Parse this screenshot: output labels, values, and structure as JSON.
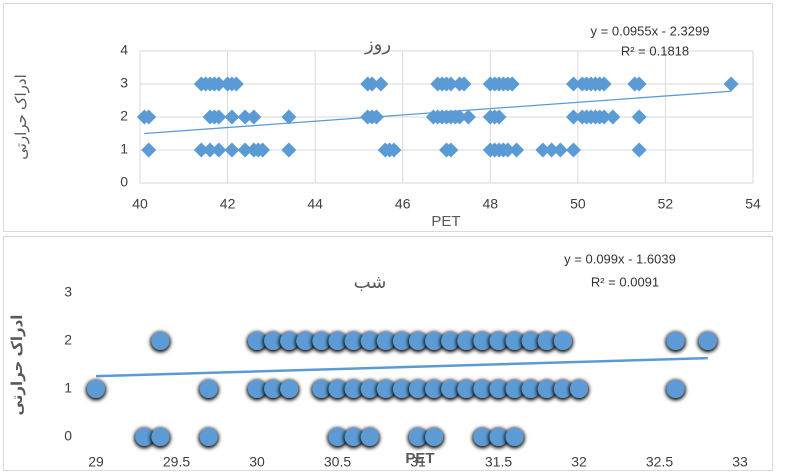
{
  "chart_data": [
    {
      "type": "scatter",
      "title": "روز",
      "x_label": "PET",
      "y_label": "ادراک حرارتی",
      "color": "#5b9bd5",
      "marker": "diamond",
      "grid": true,
      "xlim": [
        40,
        54
      ],
      "xticks": [
        40,
        42,
        44,
        46,
        48,
        50,
        52,
        54
      ],
      "ylim": [
        0,
        4
      ],
      "yticks": [
        0,
        1,
        2,
        3,
        4
      ],
      "x": [
        41.4,
        41.5,
        41.6,
        41.7,
        41.8,
        42.0,
        42.1,
        42.2,
        45.2,
        45.3,
        45.5,
        46.8,
        46.9,
        47.0,
        47.1,
        47.3,
        47.4,
        48.0,
        48.1,
        48.2,
        48.3,
        48.4,
        48.5,
        49.9,
        50.1,
        50.2,
        50.3,
        50.4,
        50.5,
        50.6,
        51.3,
        51.4,
        53.5,
        40.1,
        40.2,
        41.6,
        41.7,
        41.8,
        42.1,
        42.4,
        42.6,
        43.4,
        45.2,
        45.3,
        45.4,
        46.7,
        46.8,
        46.9,
        47.0,
        47.1,
        47.2,
        47.3,
        47.5,
        48.0,
        48.1,
        48.2,
        49.9,
        50.1,
        50.2,
        50.3,
        50.4,
        50.5,
        50.6,
        50.8,
        51.4,
        40.2,
        41.4,
        41.6,
        41.8,
        42.1,
        42.4,
        42.6,
        42.7,
        42.8,
        43.4,
        45.6,
        45.7,
        45.8,
        47.0,
        47.1,
        48.0,
        48.1,
        48.2,
        48.3,
        48.4,
        48.6,
        49.2,
        49.4,
        49.6,
        49.9,
        51.4
      ],
      "values": [
        3,
        3,
        3,
        3,
        3,
        3,
        3,
        3,
        3,
        3,
        3,
        3,
        3,
        3,
        3,
        3,
        3,
        3,
        3,
        3,
        3,
        3,
        3,
        3,
        3,
        3,
        3,
        3,
        3,
        3,
        3,
        3,
        3,
        2,
        2,
        2,
        2,
        2,
        2,
        2,
        2,
        2,
        2,
        2,
        2,
        2,
        2,
        2,
        2,
        2,
        2,
        2,
        2,
        2,
        2,
        2,
        2,
        2,
        2,
        2,
        2,
        2,
        2,
        2,
        2,
        1,
        1,
        1,
        1,
        1,
        1,
        1,
        1,
        1,
        1,
        1,
        1,
        1,
        1,
        1,
        1,
        1,
        1,
        1,
        1,
        1,
        1,
        1,
        1,
        1,
        1
      ],
      "trendline": {
        "equation": "y = 0.0955x - 2.3299",
        "r_squared": "R² = 0.1818",
        "slope": 0.0955,
        "intercept": -2.3299
      }
    },
    {
      "type": "scatter",
      "title": "شب",
      "x_label": "PET",
      "y_label": "ادراک حرارتی",
      "color": "#5b9bd5",
      "marker": "circle",
      "grid": false,
      "xlim": [
        29,
        33
      ],
      "xticks": [
        29,
        29.5,
        30,
        30.5,
        31,
        31.5,
        32,
        32.5,
        33
      ],
      "ylim": [
        0,
        3
      ],
      "yticks": [
        0,
        1,
        2,
        3
      ],
      "x": [
        29.4,
        30.0,
        30.1,
        30.2,
        30.3,
        30.4,
        30.5,
        30.6,
        30.7,
        30.8,
        30.9,
        31.0,
        31.1,
        31.2,
        31.3,
        31.4,
        31.5,
        31.6,
        31.7,
        31.8,
        31.9,
        32.6,
        32.8,
        29.0,
        29.7,
        30.0,
        30.1,
        30.2,
        30.4,
        30.5,
        30.6,
        30.7,
        30.8,
        30.9,
        31.0,
        31.1,
        31.2,
        31.3,
        31.4,
        31.5,
        31.6,
        31.7,
        31.8,
        31.9,
        32.0,
        32.6,
        29.3,
        29.4,
        29.7,
        30.5,
        30.6,
        30.7,
        31.0,
        31.1,
        31.4,
        31.5,
        31.6
      ],
      "values": [
        2,
        2,
        2,
        2,
        2,
        2,
        2,
        2,
        2,
        2,
        2,
        2,
        2,
        2,
        2,
        2,
        2,
        2,
        2,
        2,
        2,
        2,
        2,
        1,
        1,
        1,
        1,
        1,
        1,
        1,
        1,
        1,
        1,
        1,
        1,
        1,
        1,
        1,
        1,
        1,
        1,
        1,
        1,
        1,
        1,
        1,
        0,
        0,
        0,
        0,
        0,
        0,
        0,
        0,
        0,
        0,
        0
      ],
      "trendline": {
        "equation": "y = 0.099x - 1.6039",
        "r_squared": "R² = 0.0091",
        "slope": 0.099,
        "intercept": -1.6039
      }
    }
  ]
}
